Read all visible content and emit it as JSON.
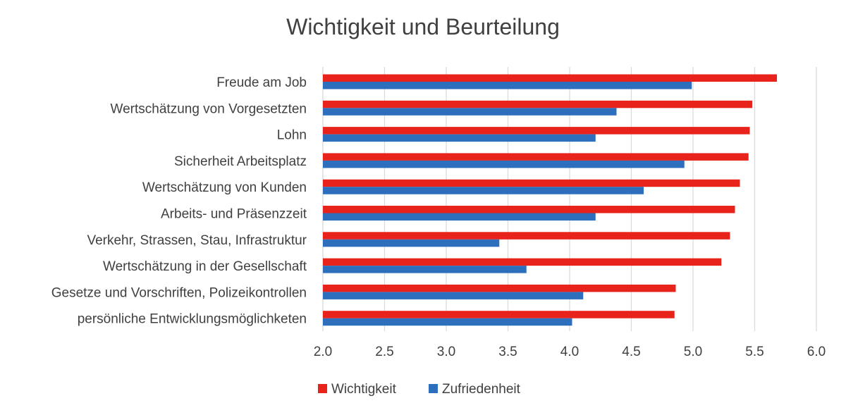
{
  "chart_data": {
    "type": "bar",
    "orientation": "horizontal",
    "title": "Wichtigkeit und Beurteilung",
    "categories": [
      "Freude am Job",
      "Wertschätzung von Vorgesetzten",
      "Lohn",
      "Sicherheit Arbeitsplatz",
      "Wertschätzung von Kunden",
      "Arbeits- und Präsenzzeit",
      "Verkehr, Strassen, Stau, Infrastruktur",
      "Wertschätzung in der Gesellschaft",
      "Gesetze und Vorschriften, Polizeikontrollen",
      "persönliche Entwicklungsmöglichketen"
    ],
    "series": [
      {
        "name": "Wichtigkeit",
        "color": "#e8231c",
        "values": [
          5.68,
          5.48,
          5.46,
          5.45,
          5.38,
          5.34,
          5.3,
          5.23,
          4.86,
          4.85
        ]
      },
      {
        "name": "Zufriedenheit",
        "color": "#2e6fbd",
        "values": [
          4.99,
          4.38,
          4.21,
          4.93,
          4.6,
          4.21,
          3.43,
          3.65,
          4.11,
          4.02
        ]
      }
    ],
    "xlim": [
      2.0,
      6.0
    ],
    "xticks": [
      "2.0",
      "2.5",
      "3.0",
      "3.5",
      "4.0",
      "4.5",
      "5.0",
      "5.5",
      "6.0"
    ],
    "xlabel": "",
    "ylabel": "",
    "grid": true,
    "legend_position": "bottom"
  }
}
